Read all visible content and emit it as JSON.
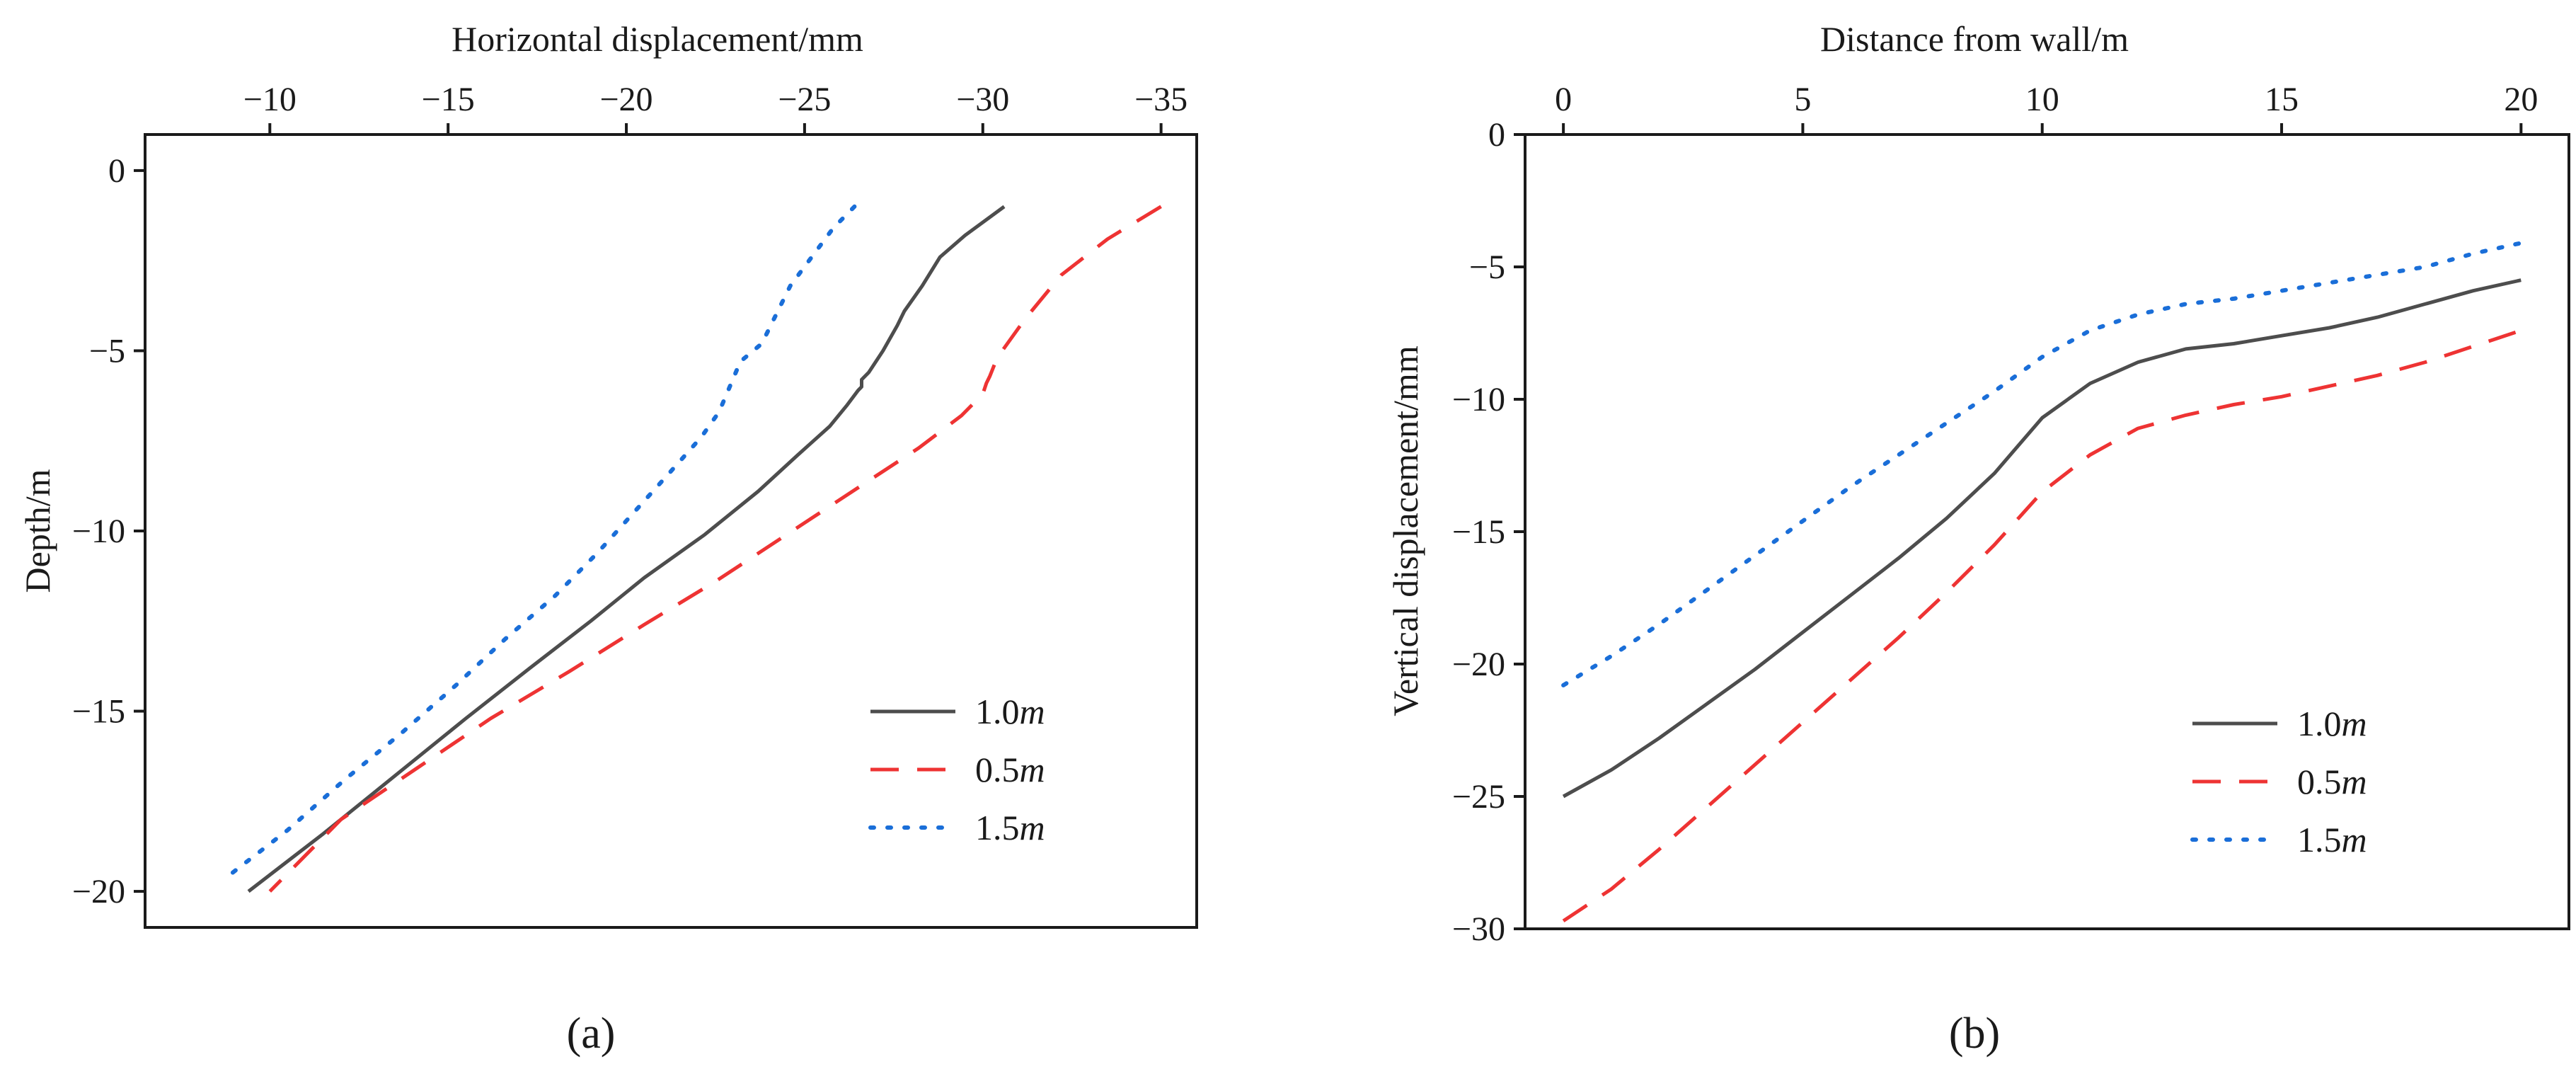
{
  "chart_data": [
    {
      "type": "line",
      "panel_label": "(a)",
      "xlabel": "Horizontal displacement/mm",
      "ylabel": "Depth/m",
      "x_axis_position": "top",
      "xlim": [
        -6.5,
        -36
      ],
      "ylim": [
        -21,
        1
      ],
      "xticks": [
        -10,
        -15,
        -20,
        -25,
        -30,
        -35
      ],
      "xtick_labels": [
        "−10",
        "−15",
        "−20",
        "−25",
        "−30",
        "−35"
      ],
      "yticks": [
        0,
        -5,
        -10,
        -15,
        -20
      ],
      "ytick_labels": [
        "0",
        "−5",
        "−10",
        "−15",
        "−20"
      ],
      "legend_position": "bottom-right",
      "series": [
        {
          "name": "1.0",
          "unit": "m",
          "style": "solid",
          "color": "#4d4d4d",
          "points": [
            [
              -30.6,
              -1.0
            ],
            [
              -29.5,
              -1.8
            ],
            [
              -28.8,
              -2.4
            ],
            [
              -28.3,
              -3.2
            ],
            [
              -27.8,
              -3.9
            ],
            [
              -27.6,
              -4.3
            ],
            [
              -27.2,
              -5.0
            ],
            [
              -26.8,
              -5.6
            ],
            [
              -26.6,
              -5.8
            ],
            [
              -26.6,
              -6.0
            ],
            [
              -26.5,
              -6.1
            ],
            [
              -26.2,
              -6.5
            ],
            [
              -25.7,
              -7.1
            ],
            [
              -24.8,
              -7.9
            ],
            [
              -23.7,
              -8.9
            ],
            [
              -22.2,
              -10.1
            ],
            [
              -20.5,
              -11.3
            ],
            [
              -19.0,
              -12.5
            ],
            [
              -17.3,
              -13.8
            ],
            [
              -15.5,
              -15.2
            ],
            [
              -13.5,
              -16.8
            ],
            [
              -11.5,
              -18.4
            ],
            [
              -9.4,
              -20.0
            ]
          ]
        },
        {
          "name": "0.5",
          "unit": "m",
          "style": "dashed",
          "color": "#ee3333",
          "points": [
            [
              -35.0,
              -1.0
            ],
            [
              -33.5,
              -1.9
            ],
            [
              -32.2,
              -2.9
            ],
            [
              -31.2,
              -4.1
            ],
            [
              -30.4,
              -5.2
            ],
            [
              -30.2,
              -5.7
            ],
            [
              -30.1,
              -5.9
            ],
            [
              -30.0,
              -6.2
            ],
            [
              -29.4,
              -6.8
            ],
            [
              -28.2,
              -7.7
            ],
            [
              -26.5,
              -8.8
            ],
            [
              -24.5,
              -10.1
            ],
            [
              -22.5,
              -11.4
            ],
            [
              -20.5,
              -12.6
            ],
            [
              -18.4,
              -13.9
            ],
            [
              -16.2,
              -15.2
            ],
            [
              -14.1,
              -16.6
            ],
            [
              -12.0,
              -18.0
            ],
            [
              -10.0,
              -20.0
            ]
          ]
        },
        {
          "name": "1.5",
          "unit": "m",
          "style": "dotted",
          "color": "#1a6ed8",
          "points": [
            [
              -26.4,
              -1.0
            ],
            [
              -25.8,
              -1.6
            ],
            [
              -25.2,
              -2.4
            ],
            [
              -24.6,
              -3.2
            ],
            [
              -24.2,
              -4.0
            ],
            [
              -23.8,
              -4.8
            ],
            [
              -23.2,
              -5.3
            ],
            [
              -22.9,
              -6.0
            ],
            [
              -22.6,
              -6.7
            ],
            [
              -22.1,
              -7.4
            ],
            [
              -21.2,
              -8.4
            ],
            [
              -20.2,
              -9.5
            ],
            [
              -19.2,
              -10.6
            ],
            [
              -18.0,
              -11.8
            ],
            [
              -16.6,
              -13.0
            ],
            [
              -15.2,
              -14.3
            ],
            [
              -13.7,
              -15.6
            ],
            [
              -12.1,
              -16.9
            ],
            [
              -10.5,
              -18.3
            ],
            [
              -8.8,
              -19.6
            ]
          ]
        }
      ]
    },
    {
      "type": "line",
      "panel_label": "(b)",
      "xlabel": "Distance from wall/m",
      "ylabel": "Vertical displacement/mm",
      "x_axis_position": "top",
      "xlim": [
        -0.8,
        21
      ],
      "ylim": [
        -30,
        0
      ],
      "xticks": [
        0,
        5,
        10,
        15,
        20
      ],
      "xtick_labels": [
        "0",
        "5",
        "10",
        "15",
        "20"
      ],
      "yticks": [
        0,
        -5,
        -10,
        -15,
        -20,
        -25,
        -30
      ],
      "ytick_labels": [
        "0",
        "−5",
        "−10",
        "−15",
        "−20",
        "−25",
        "−30"
      ],
      "legend_position": "bottom-right",
      "series": [
        {
          "name": "1.0",
          "unit": "m",
          "style": "solid",
          "color": "#4d4d4d",
          "points": [
            [
              0,
              -25.0
            ],
            [
              1,
              -24.0
            ],
            [
              2,
              -22.8
            ],
            [
              3,
              -21.5
            ],
            [
              4,
              -20.2
            ],
            [
              5,
              -18.8
            ],
            [
              6,
              -17.4
            ],
            [
              7,
              -16.0
            ],
            [
              8,
              -14.5
            ],
            [
              9,
              -12.8
            ],
            [
              10,
              -10.7
            ],
            [
              11,
              -9.4
            ],
            [
              12,
              -8.6
            ],
            [
              13,
              -8.1
            ],
            [
              14,
              -7.9
            ],
            [
              15,
              -7.6
            ],
            [
              16,
              -7.3
            ],
            [
              17,
              -6.9
            ],
            [
              18,
              -6.4
            ],
            [
              19,
              -5.9
            ],
            [
              20,
              -5.5
            ]
          ]
        },
        {
          "name": "0.5",
          "unit": "m",
          "style": "dashed",
          "color": "#ee3333",
          "points": [
            [
              0,
              -29.7
            ],
            [
              1,
              -28.5
            ],
            [
              2,
              -27.0
            ],
            [
              3,
              -25.4
            ],
            [
              4,
              -23.8
            ],
            [
              5,
              -22.2
            ],
            [
              6,
              -20.6
            ],
            [
              7,
              -19.0
            ],
            [
              8,
              -17.3
            ],
            [
              9,
              -15.5
            ],
            [
              10,
              -13.5
            ],
            [
              11,
              -12.1
            ],
            [
              12,
              -11.1
            ],
            [
              13,
              -10.6
            ],
            [
              14,
              -10.2
            ],
            [
              15,
              -9.9
            ],
            [
              16,
              -9.5
            ],
            [
              17,
              -9.1
            ],
            [
              18,
              -8.6
            ],
            [
              19,
              -8.0
            ],
            [
              20,
              -7.4
            ]
          ]
        },
        {
          "name": "1.5",
          "unit": "m",
          "style": "dotted",
          "color": "#1a6ed8",
          "points": [
            [
              0,
              -20.8
            ],
            [
              1,
              -19.7
            ],
            [
              2,
              -18.5
            ],
            [
              3,
              -17.2
            ],
            [
              4,
              -15.9
            ],
            [
              5,
              -14.6
            ],
            [
              6,
              -13.3
            ],
            [
              7,
              -12.1
            ],
            [
              8,
              -10.9
            ],
            [
              9,
              -9.7
            ],
            [
              10,
              -8.4
            ],
            [
              11,
              -7.4
            ],
            [
              12,
              -6.8
            ],
            [
              13,
              -6.4
            ],
            [
              14,
              -6.2
            ],
            [
              15,
              -5.9
            ],
            [
              16,
              -5.6
            ],
            [
              17,
              -5.3
            ],
            [
              18,
              -5.0
            ],
            [
              19,
              -4.5
            ],
            [
              20,
              -4.1
            ]
          ]
        }
      ]
    }
  ]
}
